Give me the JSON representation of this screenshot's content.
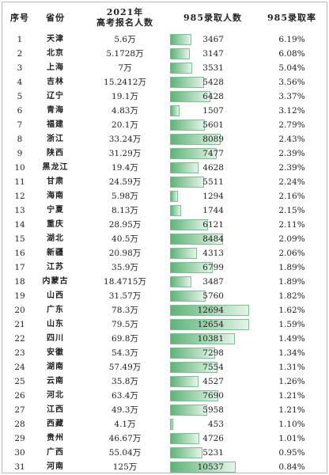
{
  "table": {
    "headers": {
      "seq": "序号",
      "province": "省份",
      "reg_line1": "2021年",
      "reg_line2": "高考报名人数",
      "count": "985录取人数",
      "rate": "985录取率"
    },
    "count_max": 12694,
    "rows": [
      {
        "seq": "1",
        "province": "天津",
        "registrants": "5.6万",
        "count": "3467",
        "count_value": 3467,
        "rate": "6.19%"
      },
      {
        "seq": "2",
        "province": "北京",
        "registrants": "5.1728万",
        "count": "3147",
        "count_value": 3147,
        "rate": "6.08%"
      },
      {
        "seq": "3",
        "province": "上海",
        "registrants": "7万",
        "count": "3531",
        "count_value": 3531,
        "rate": "5.04%"
      },
      {
        "seq": "4",
        "province": "吉林",
        "registrants": "15.2412万",
        "count": "5428",
        "count_value": 5428,
        "rate": "3.56%"
      },
      {
        "seq": "5",
        "province": "辽宁",
        "registrants": "19.1万",
        "count": "6428",
        "count_value": 6428,
        "rate": "3.37%"
      },
      {
        "seq": "6",
        "province": "青海",
        "registrants": "4.83万",
        "count": "1507",
        "count_value": 1507,
        "rate": "3.12%"
      },
      {
        "seq": "7",
        "province": "福建",
        "registrants": "20.1万",
        "count": "5601",
        "count_value": 5601,
        "rate": "2.79%"
      },
      {
        "seq": "8",
        "province": "浙江",
        "registrants": "33.24万",
        "count": "8089",
        "count_value": 8089,
        "rate": "2.43%"
      },
      {
        "seq": "9",
        "province": "陕西",
        "registrants": "31.29万",
        "count": "7477",
        "count_value": 7477,
        "rate": "2.39%"
      },
      {
        "seq": "10",
        "province": "黑龙江",
        "registrants": "19.4万",
        "count": "4628",
        "count_value": 4628,
        "rate": "2.39%"
      },
      {
        "seq": "11",
        "province": "甘肃",
        "registrants": "24.59万",
        "count": "5511",
        "count_value": 5511,
        "rate": "2.24%"
      },
      {
        "seq": "12",
        "province": "海南",
        "registrants": "5.98万",
        "count": "1294",
        "count_value": 1294,
        "rate": "2.16%"
      },
      {
        "seq": "13",
        "province": "宁夏",
        "registrants": "8.13万",
        "count": "1744",
        "count_value": 1744,
        "rate": "2.15%"
      },
      {
        "seq": "14",
        "province": "重庆",
        "registrants": "28.95万",
        "count": "6121",
        "count_value": 6121,
        "rate": "2.11%"
      },
      {
        "seq": "15",
        "province": "湖北",
        "registrants": "40.5万",
        "count": "8484",
        "count_value": 8484,
        "rate": "2.09%"
      },
      {
        "seq": "16",
        "province": "新疆",
        "registrants": "20.98万",
        "count": "4313",
        "count_value": 4313,
        "rate": "2.06%"
      },
      {
        "seq": "17",
        "province": "江苏",
        "registrants": "35.9万",
        "count": "6799",
        "count_value": 6799,
        "rate": "1.89%"
      },
      {
        "seq": "18",
        "province": "内蒙古",
        "registrants": "18.4715万",
        "count": "3487",
        "count_value": 3487,
        "rate": "1.89%"
      },
      {
        "seq": "19",
        "province": "山西",
        "registrants": "31.57万",
        "count": "5760",
        "count_value": 5760,
        "rate": "1.82%"
      },
      {
        "seq": "20",
        "province": "广东",
        "registrants": "78.3万",
        "count": "12694",
        "count_value": 12694,
        "rate": "1.62%"
      },
      {
        "seq": "21",
        "province": "山东",
        "registrants": "79.5万",
        "count": "12654",
        "count_value": 12654,
        "rate": "1.59%"
      },
      {
        "seq": "22",
        "province": "四川",
        "registrants": "69.8万",
        "count": "10381",
        "count_value": 10381,
        "rate": "1.49%"
      },
      {
        "seq": "23",
        "province": "安徽",
        "registrants": "54.3万",
        "count": "7298",
        "count_value": 7298,
        "rate": "1.34%"
      },
      {
        "seq": "24",
        "province": "湖南",
        "registrants": "57.49万",
        "count": "7554",
        "count_value": 7554,
        "rate": "1.31%"
      },
      {
        "seq": "25",
        "province": "云南",
        "registrants": "35.8万",
        "count": "4527",
        "count_value": 4527,
        "rate": "1.26%"
      },
      {
        "seq": "26",
        "province": "河北",
        "registrants": "63.4万",
        "count": "7690",
        "count_value": 7690,
        "rate": "1.21%"
      },
      {
        "seq": "27",
        "province": "江西",
        "registrants": "49.3万",
        "count": "5958",
        "count_value": 5958,
        "rate": "1.21%"
      },
      {
        "seq": "28",
        "province": "西藏",
        "registrants": "4.1万",
        "count": "453",
        "count_value": 453,
        "rate": "1.10%"
      },
      {
        "seq": "29",
        "province": "贵州",
        "registrants": "46.67万",
        "count": "4726",
        "count_value": 4726,
        "rate": "1.01%"
      },
      {
        "seq": "30",
        "province": "广西",
        "registrants": "55.04万",
        "count": "5231",
        "count_value": 5231,
        "rate": "0.95%"
      },
      {
        "seq": "31",
        "province": "河南",
        "registrants": "125万",
        "count": "10537",
        "count_value": 10537,
        "rate": "0.84%"
      }
    ]
  },
  "colors": {
    "bar_start": "#5fb37a",
    "bar_end": "#e6f4ea",
    "bar_border": "#7cc08f"
  }
}
